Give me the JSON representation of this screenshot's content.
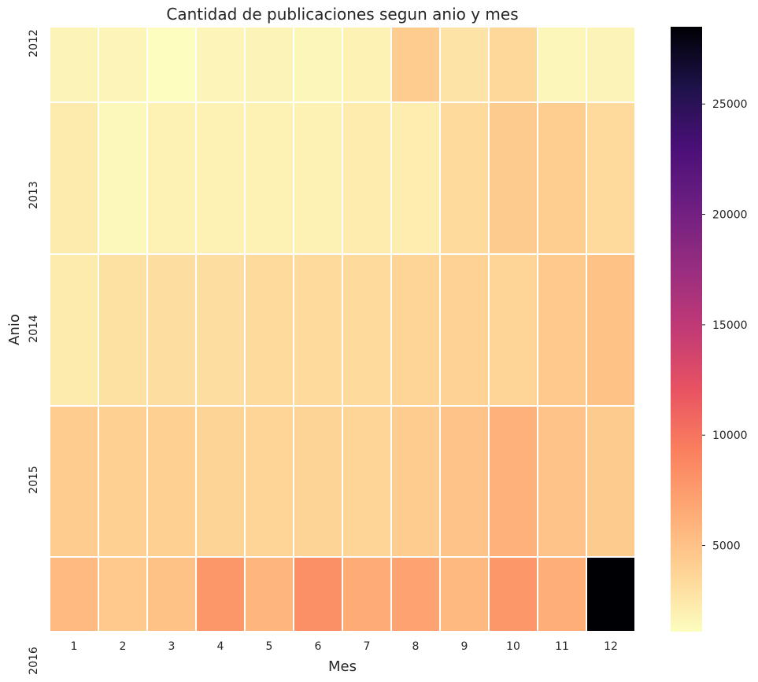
{
  "chart_data": {
    "type": "heatmap",
    "title": "Cantidad de publicaciones segun anio y mes",
    "xlabel": "Mes",
    "ylabel": "Anio",
    "x_categories": [
      "1",
      "2",
      "3",
      "4",
      "5",
      "6",
      "7",
      "8",
      "9",
      "10",
      "11",
      "12"
    ],
    "y_tick_labels": [
      "2012",
      "2013",
      "2014",
      "2015",
      "2016"
    ],
    "rows": [
      {
        "year": "2012",
        "values": [
          1700,
          1600,
          1100,
          1600,
          1700,
          1500,
          1800,
          4300,
          2800,
          3500,
          1500,
          1700
        ]
      },
      {
        "year": "2013",
        "values": [
          2300,
          1400,
          1800,
          1800,
          1900,
          1900,
          2200,
          2100,
          3400,
          4400,
          4200,
          3300
        ]
      },
      {
        "year": "2014",
        "values": [
          2300,
          2900,
          3100,
          3100,
          3300,
          3300,
          3300,
          3700,
          3900,
          3700,
          4500,
          5000
        ]
      },
      {
        "year": "2015",
        "values": [
          4300,
          4000,
          4000,
          3800,
          3700,
          3800,
          3700,
          4300,
          4900,
          6100,
          4900,
          4400
        ]
      },
      {
        "year": "2016",
        "values": [
          5500,
          4500,
          5000,
          7800,
          5800,
          8300,
          6500,
          7000,
          5600,
          7800,
          6300,
          28500
        ]
      }
    ],
    "colorbar": {
      "colormap": "magma_r",
      "vmin": 1100,
      "vmax": 28500,
      "ticks": [
        "5000",
        "10000",
        "15000",
        "20000",
        "25000"
      ]
    },
    "grid": true
  }
}
